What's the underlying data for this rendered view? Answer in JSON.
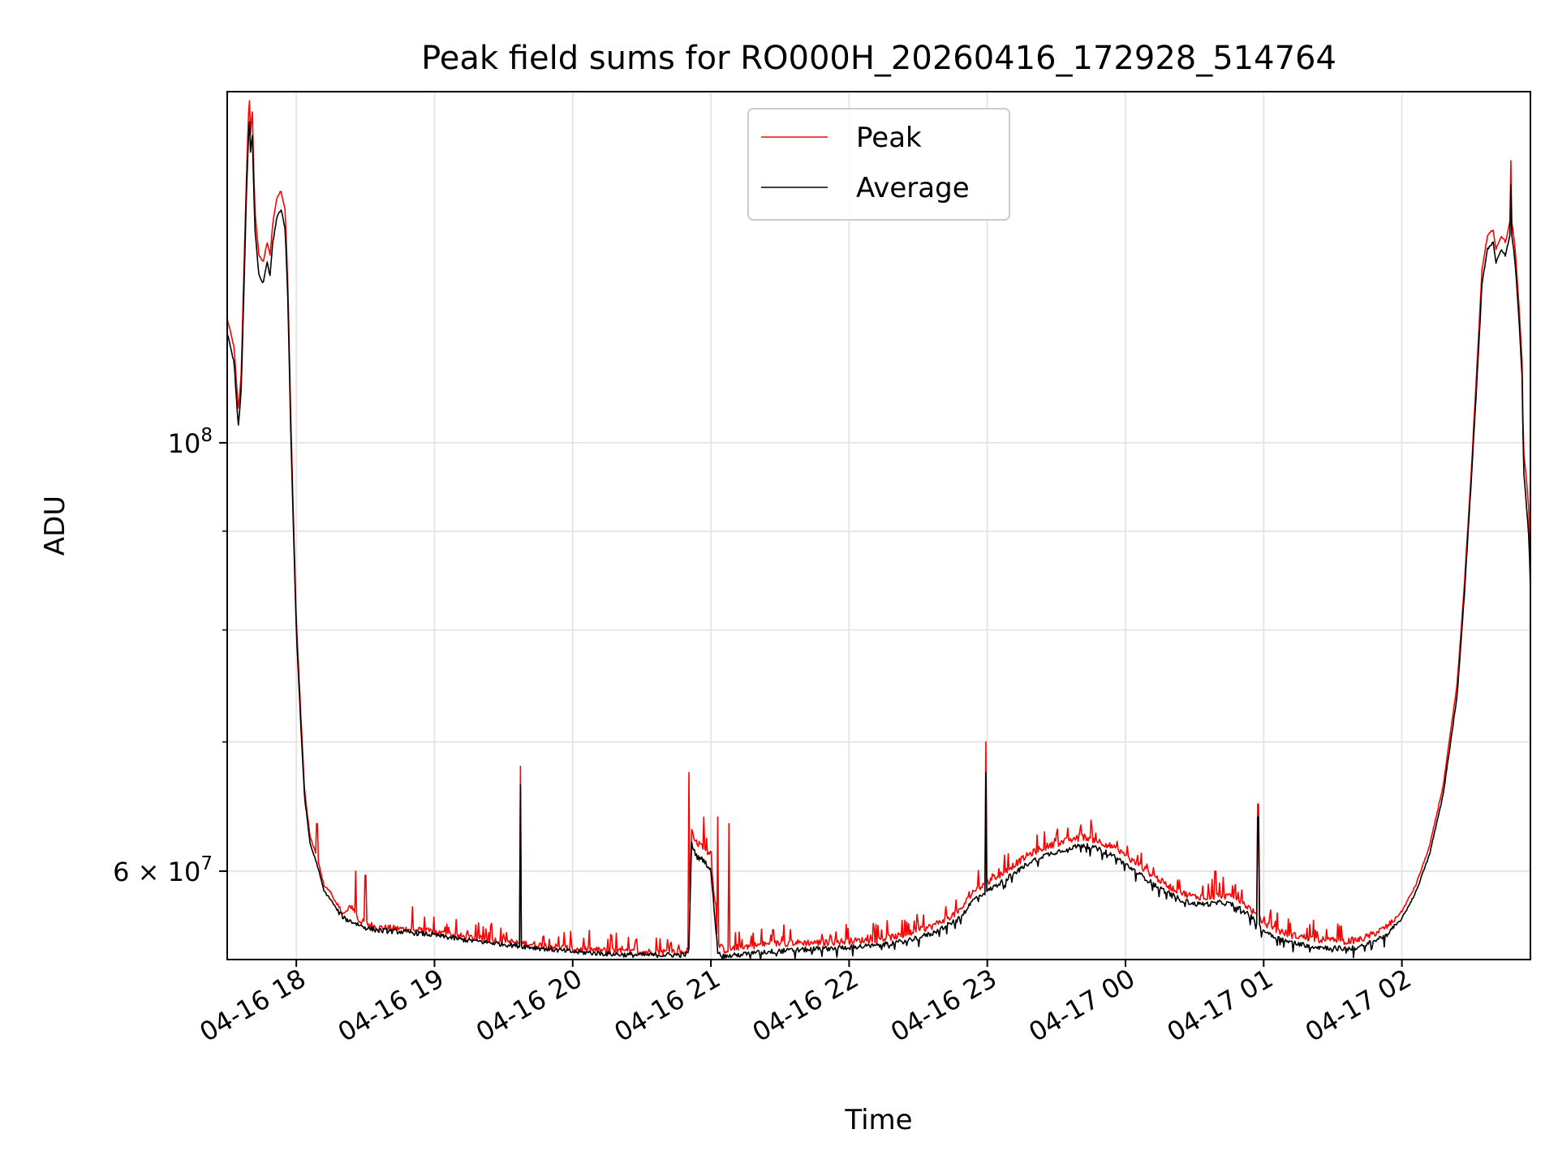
{
  "chart_data": {
    "type": "line",
    "title": "Peak field sums for RO000H_20260416_172928_514764",
    "xlabel": "Time",
    "ylabel": "ADU",
    "yscale": "log",
    "ylim": [
      54000000,
      152000000
    ],
    "xlim": [
      -0.5,
      8.93
    ],
    "x_unit": "hours after 04-16 18:00",
    "grid": true,
    "legend_position": "upper center",
    "x_ticks": [
      {
        "x": 0,
        "label": "04-16 18"
      },
      {
        "x": 1,
        "label": "04-16 19"
      },
      {
        "x": 2,
        "label": "04-16 20"
      },
      {
        "x": 3,
        "label": "04-16 21"
      },
      {
        "x": 4,
        "label": "04-16 22"
      },
      {
        "x": 5,
        "label": "04-16 23"
      },
      {
        "x": 6,
        "label": "04-17 00"
      },
      {
        "x": 7,
        "label": "04-17 01"
      },
      {
        "x": 8,
        "label": "04-17 02"
      }
    ],
    "y_major_ticks": [
      {
        "y": 100000000,
        "base": "10",
        "exp": "8"
      },
      {
        "y": 60000000,
        "mantissa": "6",
        "base": "10",
        "exp": "7"
      }
    ],
    "y_minor_ticks": [
      60000000,
      70000000,
      80000000,
      90000000
    ],
    "series": [
      {
        "name": "Peak",
        "color": "#ff0000",
        "points": [
          [
            -0.5,
            116000000
          ],
          [
            -0.45,
            112000000
          ],
          [
            -0.42,
            104000000
          ],
          [
            -0.4,
            108000000
          ],
          [
            -0.38,
            122000000
          ],
          [
            -0.36,
            138000000
          ],
          [
            -0.34,
            152000000
          ],
          [
            -0.33,
            143000000
          ],
          [
            -0.32,
            150000000
          ],
          [
            -0.3,
            132000000
          ],
          [
            -0.27,
            125000000
          ],
          [
            -0.24,
            124000000
          ],
          [
            -0.21,
            127000000
          ],
          [
            -0.19,
            125000000
          ],
          [
            -0.17,
            130000000
          ],
          [
            -0.14,
            134000000
          ],
          [
            -0.11,
            135000000
          ],
          [
            -0.08,
            132000000
          ],
          [
            -0.06,
            120000000
          ],
          [
            -0.04,
            103000000
          ],
          [
            -0.02,
            91000000
          ],
          [
            0.0,
            81000000
          ],
          [
            0.03,
            73000000
          ],
          [
            0.06,
            66000000
          ],
          [
            0.1,
            62500000
          ],
          [
            0.15,
            61000000
          ],
          [
            0.2,
            59000000
          ],
          [
            0.25,
            58500000
          ],
          [
            0.3,
            57500000
          ],
          [
            0.35,
            57000000
          ],
          [
            0.4,
            57600000
          ],
          [
            0.45,
            56600000
          ],
          [
            0.5,
            56400000
          ],
          [
            0.6,
            56100000
          ],
          [
            0.8,
            56000000
          ],
          [
            1.0,
            55800000
          ],
          [
            1.2,
            55500000
          ],
          [
            1.4,
            55300000
          ],
          [
            1.6,
            55100000
          ],
          [
            1.8,
            54900000
          ],
          [
            2.0,
            54700000
          ],
          [
            2.2,
            54600000
          ],
          [
            2.4,
            54500000
          ],
          [
            2.6,
            54500000
          ],
          [
            2.8,
            54500000
          ],
          [
            2.84,
            54600000
          ],
          [
            2.86,
            63000000
          ],
          [
            2.9,
            62000000
          ],
          [
            2.95,
            61800000
          ],
          [
            3.0,
            61000000
          ],
          [
            3.05,
            55000000
          ],
          [
            3.1,
            54600000
          ],
          [
            3.2,
            54800000
          ],
          [
            3.4,
            55000000
          ],
          [
            3.6,
            55100000
          ],
          [
            3.8,
            55100000
          ],
          [
            4.0,
            55200000
          ],
          [
            4.2,
            55300000
          ],
          [
            4.4,
            55600000
          ],
          [
            4.6,
            56200000
          ],
          [
            4.8,
            57200000
          ],
          [
            4.9,
            58600000
          ],
          [
            5.0,
            59200000
          ],
          [
            5.1,
            59800000
          ],
          [
            5.2,
            60500000
          ],
          [
            5.3,
            61200000
          ],
          [
            5.4,
            61700000
          ],
          [
            5.5,
            62000000
          ],
          [
            5.6,
            62300000
          ],
          [
            5.7,
            62500000
          ],
          [
            5.8,
            62200000
          ],
          [
            5.9,
            61800000
          ],
          [
            6.0,
            61100000
          ],
          [
            6.1,
            60400000
          ],
          [
            6.2,
            59700000
          ],
          [
            6.3,
            59000000
          ],
          [
            6.4,
            58500000
          ],
          [
            6.5,
            58200000
          ],
          [
            6.6,
            58200000
          ],
          [
            6.7,
            58300000
          ],
          [
            6.8,
            58100000
          ],
          [
            6.9,
            57400000
          ],
          [
            7.0,
            56400000
          ],
          [
            7.1,
            55900000
          ],
          [
            7.2,
            55600000
          ],
          [
            7.4,
            55300000
          ],
          [
            7.6,
            55200000
          ],
          [
            7.7,
            55300000
          ],
          [
            7.8,
            55700000
          ],
          [
            7.9,
            56200000
          ],
          [
            8.0,
            57200000
          ],
          [
            8.1,
            59000000
          ],
          [
            8.2,
            61800000
          ],
          [
            8.3,
            66500000
          ],
          [
            8.4,
            75000000
          ],
          [
            8.45,
            84000000
          ],
          [
            8.5,
            96000000
          ],
          [
            8.55,
            112000000
          ],
          [
            8.58,
            123000000
          ],
          [
            8.62,
            128000000
          ],
          [
            8.66,
            129000000
          ],
          [
            8.68,
            126000000
          ],
          [
            8.72,
            128000000
          ],
          [
            8.75,
            127000000
          ],
          [
            8.77,
            129000000
          ],
          [
            8.79,
            131000000
          ],
          [
            8.82,
            126000000
          ],
          [
            8.85,
            117000000
          ],
          [
            8.87,
            110000000
          ],
          [
            8.88,
            99000000
          ],
          [
            8.9,
            96000000
          ],
          [
            8.92,
            92000000
          ],
          [
            8.93,
            86000000
          ]
        ],
        "spikes": [
          [
            0.15,
            63500000
          ],
          [
            0.43,
            60000000
          ],
          [
            0.5,
            59700000
          ],
          [
            0.84,
            57500000
          ],
          [
            1.62,
            68000000
          ],
          [
            2.84,
            67500000
          ],
          [
            2.95,
            64000000
          ],
          [
            3.05,
            64000000
          ],
          [
            3.13,
            63500000
          ],
          [
            4.99,
            70000000
          ],
          [
            6.65,
            60000000
          ],
          [
            6.96,
            65000000
          ],
          [
            8.79,
            140000000
          ]
        ]
      },
      {
        "name": "Average",
        "color": "#000000",
        "points": [
          [
            -0.5,
            114000000
          ],
          [
            -0.45,
            110000000
          ],
          [
            -0.42,
            102000000
          ],
          [
            -0.4,
            106000000
          ],
          [
            -0.38,
            119000000
          ],
          [
            -0.36,
            135000000
          ],
          [
            -0.34,
            148000000
          ],
          [
            -0.33,
            140000000
          ],
          [
            -0.32,
            146000000
          ],
          [
            -0.3,
            129000000
          ],
          [
            -0.27,
            122000000
          ],
          [
            -0.24,
            121000000
          ],
          [
            -0.21,
            124000000
          ],
          [
            -0.19,
            122000000
          ],
          [
            -0.17,
            127000000
          ],
          [
            -0.14,
            131000000
          ],
          [
            -0.11,
            132000000
          ],
          [
            -0.08,
            129000000
          ],
          [
            -0.06,
            118000000
          ],
          [
            -0.04,
            101000000
          ],
          [
            -0.02,
            90000000
          ],
          [
            0.0,
            80000000
          ],
          [
            0.03,
            72000000
          ],
          [
            0.06,
            65500000
          ],
          [
            0.1,
            62000000
          ],
          [
            0.15,
            60500000
          ],
          [
            0.2,
            58600000
          ],
          [
            0.25,
            58000000
          ],
          [
            0.3,
            57200000
          ],
          [
            0.35,
            56700000
          ],
          [
            0.4,
            56500000
          ],
          [
            0.45,
            56300000
          ],
          [
            0.5,
            56100000
          ],
          [
            0.6,
            55900000
          ],
          [
            0.8,
            55800000
          ],
          [
            1.0,
            55600000
          ],
          [
            1.2,
            55300000
          ],
          [
            1.4,
            55100000
          ],
          [
            1.6,
            54900000
          ],
          [
            1.8,
            54700000
          ],
          [
            2.0,
            54500000
          ],
          [
            2.2,
            54400000
          ],
          [
            2.4,
            54300000
          ],
          [
            2.6,
            54300000
          ],
          [
            2.8,
            54300000
          ],
          [
            2.84,
            54400000
          ],
          [
            2.86,
            62000000
          ],
          [
            2.9,
            61000000
          ],
          [
            2.95,
            60800000
          ],
          [
            3.0,
            60000000
          ],
          [
            3.05,
            54500000
          ],
          [
            3.1,
            54200000
          ],
          [
            3.2,
            54300000
          ],
          [
            3.4,
            54500000
          ],
          [
            3.6,
            54600000
          ],
          [
            3.8,
            54700000
          ],
          [
            4.0,
            54800000
          ],
          [
            4.2,
            54900000
          ],
          [
            4.4,
            55200000
          ],
          [
            4.6,
            55700000
          ],
          [
            4.8,
            56700000
          ],
          [
            4.9,
            58000000
          ],
          [
            5.0,
            58600000
          ],
          [
            5.1,
            59200000
          ],
          [
            5.2,
            59900000
          ],
          [
            5.3,
            60600000
          ],
          [
            5.4,
            61100000
          ],
          [
            5.5,
            61400000
          ],
          [
            5.6,
            61700000
          ],
          [
            5.7,
            61900000
          ],
          [
            5.8,
            61600000
          ],
          [
            5.9,
            61200000
          ],
          [
            6.0,
            60500000
          ],
          [
            6.1,
            59800000
          ],
          [
            6.2,
            59100000
          ],
          [
            6.3,
            58500000
          ],
          [
            6.4,
            58000000
          ],
          [
            6.5,
            57700000
          ],
          [
            6.6,
            57700000
          ],
          [
            6.7,
            57800000
          ],
          [
            6.8,
            57600000
          ],
          [
            6.9,
            56900000
          ],
          [
            7.0,
            55900000
          ],
          [
            7.1,
            55400000
          ],
          [
            7.2,
            55100000
          ],
          [
            7.4,
            54800000
          ],
          [
            7.6,
            54700000
          ],
          [
            7.7,
            54800000
          ],
          [
            7.8,
            55200000
          ],
          [
            7.9,
            55700000
          ],
          [
            8.0,
            56700000
          ],
          [
            8.1,
            58500000
          ],
          [
            8.2,
            61200000
          ],
          [
            8.3,
            65800000
          ],
          [
            8.4,
            74000000
          ],
          [
            8.45,
            83000000
          ],
          [
            8.5,
            95000000
          ],
          [
            8.55,
            110000000
          ],
          [
            8.58,
            121000000
          ],
          [
            8.62,
            126000000
          ],
          [
            8.66,
            127000000
          ],
          [
            8.68,
            124000000
          ],
          [
            8.72,
            126000000
          ],
          [
            8.75,
            125000000
          ],
          [
            8.77,
            127000000
          ],
          [
            8.79,
            129000000
          ],
          [
            8.82,
            124000000
          ],
          [
            8.85,
            115000000
          ],
          [
            8.87,
            108000000
          ],
          [
            8.88,
            97000000
          ],
          [
            8.9,
            93000000
          ],
          [
            8.92,
            89000000
          ],
          [
            8.93,
            84000000
          ]
        ],
        "spikes": [
          [
            1.62,
            66500000
          ],
          [
            4.99,
            67500000
          ],
          [
            6.96,
            64000000
          ],
          [
            8.79,
            136000000
          ]
        ]
      }
    ]
  }
}
